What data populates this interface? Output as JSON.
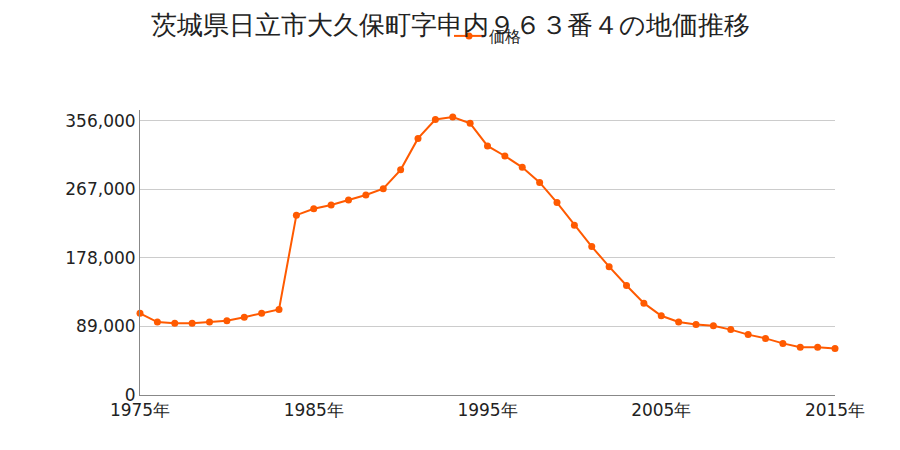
{
  "chart_data": {
    "type": "line",
    "title": "茨城県日立市大久保町字申内９６３番４の地価推移",
    "x": [
      1975,
      1976,
      1977,
      1978,
      1979,
      1980,
      1981,
      1982,
      1983,
      1984,
      1985,
      1986,
      1987,
      1988,
      1989,
      1990,
      1991,
      1992,
      1993,
      1994,
      1995,
      1996,
      1997,
      1998,
      1999,
      2000,
      2001,
      2002,
      2003,
      2004,
      2005,
      2006,
      2007,
      2008,
      2009,
      2010,
      2011,
      2012,
      2013,
      2014,
      2015
    ],
    "series": [
      {
        "name": "価格",
        "color": "#ff5a00",
        "marker": "circle",
        "values": [
          106000,
          94700,
          93000,
          93000,
          94700,
          96300,
          101000,
          106000,
          111000,
          233500,
          241700,
          246600,
          253000,
          259600,
          267800,
          292300,
          333100,
          357600,
          360900,
          352700,
          323300,
          310300,
          295600,
          276000,
          249800,
          220500,
          192700,
          166600,
          142100,
          119200,
          102900,
          94700,
          91400,
          89800,
          84900,
          78400,
          73500,
          67000,
          62100,
          62100,
          60400
        ]
      }
    ],
    "xlim": [
      1975,
      2015
    ],
    "xticks": [
      {
        "value": 1975,
        "label": "1975年"
      },
      {
        "value": 1985,
        "label": "1985年"
      },
      {
        "value": 1995,
        "label": "1995年"
      },
      {
        "value": 2005,
        "label": "2005年"
      },
      {
        "value": 2015,
        "label": "2015年"
      }
    ],
    "ylim": [
      0,
      370000
    ],
    "yticks": [
      0,
      {
        "value": 89000,
        "label": "89,000"
      },
      {
        "value": 178000,
        "label": "178,000"
      },
      {
        "value": 267000,
        "label": "267,000"
      },
      {
        "value": 356000,
        "label": "356,000"
      }
    ],
    "grid": true,
    "legend": "top"
  }
}
